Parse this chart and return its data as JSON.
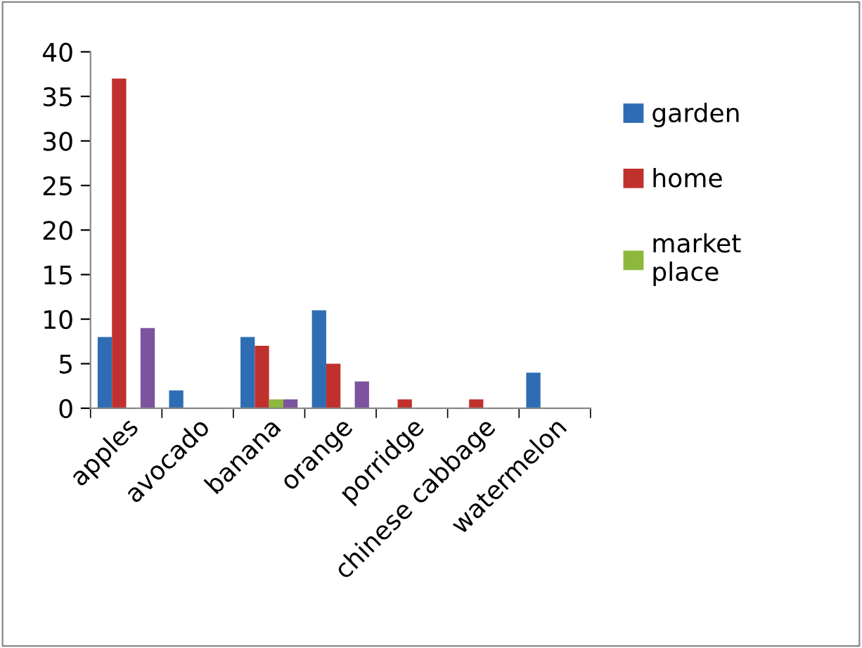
{
  "chart_data": {
    "type": "bar",
    "categories": [
      "apples",
      "avocado",
      "banana",
      "orange",
      "porridge",
      "chinese cabbage",
      "watermelon"
    ],
    "series": [
      {
        "name": "garden",
        "color": "#2e6db4",
        "values": [
          8,
          2,
          8,
          11,
          null,
          null,
          4
        ]
      },
      {
        "name": "home",
        "color": "#c0312e",
        "values": [
          37,
          null,
          7,
          5,
          1,
          1,
          null
        ]
      },
      {
        "name": "market place",
        "color": "#8db83c",
        "values": [
          null,
          null,
          1,
          null,
          null,
          null,
          null
        ]
      },
      {
        "color": "#7d539f",
        "values": [
          9,
          null,
          1,
          3,
          null,
          null,
          null
        ]
      }
    ],
    "ylim": [
      0,
      40
    ],
    "yticks": [
      0,
      5,
      10,
      15,
      20,
      25,
      30,
      35,
      40
    ],
    "legend": "right",
    "grid": false
  }
}
